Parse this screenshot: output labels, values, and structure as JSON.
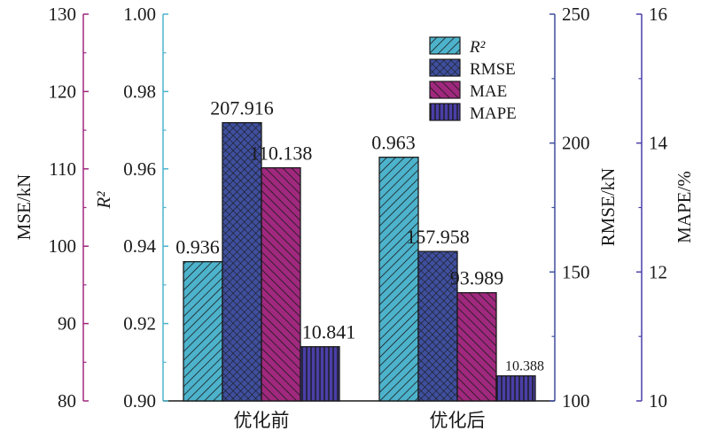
{
  "chart_data": {
    "type": "bar",
    "categories": [
      "优化前",
      "优化后"
    ],
    "series": [
      {
        "name": "R²",
        "axis": "r2",
        "values": [
          0.936,
          0.963
        ],
        "labels": [
          "0.936",
          "0.963"
        ],
        "color": "#4db3cc",
        "pattern": "diag-forward"
      },
      {
        "name": "RMSE",
        "axis": "rmse",
        "values": [
          207.916,
          157.958
        ],
        "labels": [
          "207.916",
          "157.958"
        ],
        "color": "#3f4f9e",
        "pattern": "crosshatch"
      },
      {
        "name": "MAE",
        "axis": "mse",
        "values": [
          110.138,
          93.989
        ],
        "labels": [
          "110.138",
          "93.989"
        ],
        "color": "#a0287e",
        "pattern": "diag-back"
      },
      {
        "name": "MAPE",
        "axis": "mape",
        "values": [
          10.841,
          10.388
        ],
        "labels": [
          "10.841",
          "10.388"
        ],
        "color": "#4a3fa8",
        "pattern": "vertical"
      }
    ],
    "axes": {
      "mse": {
        "label": "MSE/kN",
        "ylim": [
          80,
          130
        ],
        "ticks": [
          "80",
          "90",
          "100",
          "110",
          "120",
          "130"
        ],
        "color": "#a0287e",
        "side": "left-outer"
      },
      "r2": {
        "label": "R²",
        "ylim": [
          0.9,
          1.0
        ],
        "ticks": [
          "0.90",
          "0.92",
          "0.94",
          "0.96",
          "0.98",
          "1.00"
        ],
        "color": "#4db3cc",
        "side": "left-inner"
      },
      "rmse": {
        "label": "RMSE/kN",
        "ylim": [
          100,
          250
        ],
        "ticks": [
          "100",
          "150",
          "200",
          "250"
        ],
        "color": "#3f4f9e",
        "side": "right-inner"
      },
      "mape": {
        "label": "MAPE/%",
        "ylim": [
          10,
          16
        ],
        "ticks": [
          "10",
          "12",
          "14",
          "16"
        ],
        "color": "#4a3fa8",
        "side": "right-outer"
      }
    },
    "legend": {
      "position": "top-right",
      "entries": [
        "R²",
        "RMSE",
        "MAE",
        "MAPE"
      ]
    },
    "grid": false
  }
}
